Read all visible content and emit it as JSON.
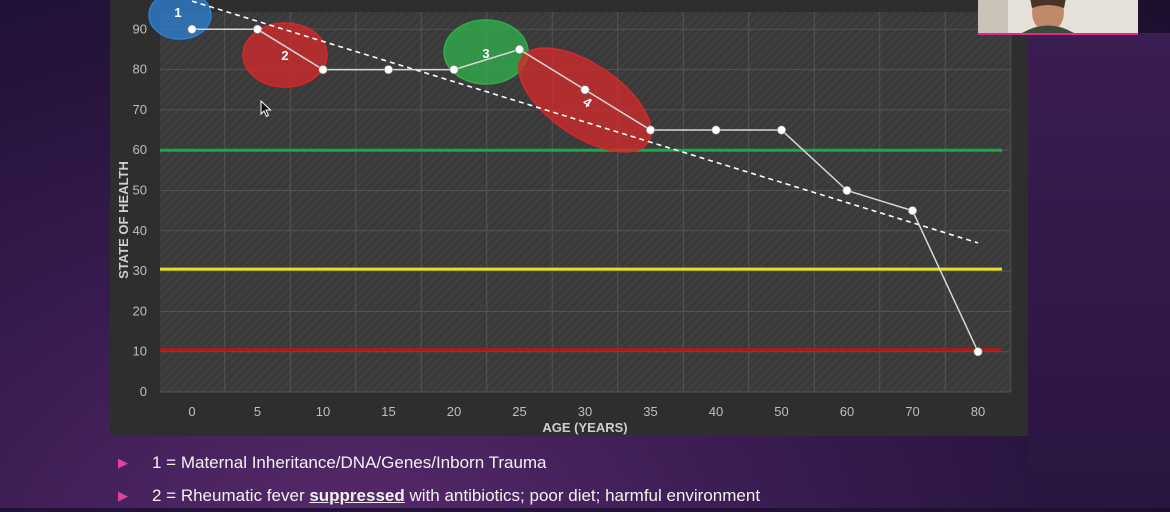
{
  "chart_data": {
    "type": "line",
    "ylabel": "STATE OF HEALTH",
    "xlabel": "AGE (YEARS)",
    "categories": [
      "0",
      "5",
      "10",
      "15",
      "20",
      "25",
      "30",
      "35",
      "40",
      "50",
      "60",
      "70",
      "80"
    ],
    "yticks": [
      "90",
      "80",
      "70",
      "60",
      "50",
      "40",
      "30",
      "20",
      "10",
      "0"
    ],
    "ylim": [
      0,
      100
    ],
    "grid": true,
    "series": [
      {
        "values": [
          90,
          90,
          80,
          80,
          80,
          85,
          75,
          65,
          65,
          65,
          50,
          45,
          10
        ]
      }
    ],
    "trendline": {
      "style": "dashed",
      "from": [
        "0",
        97
      ],
      "to": [
        "80",
        37
      ]
    },
    "reference_lines": [
      {
        "value": 60,
        "color": "#1aa84a"
      },
      {
        "value": 30.5,
        "color": "#e3e02a"
      },
      {
        "value": 10.5,
        "color": "#b01818"
      }
    ],
    "annotations": [
      {
        "label": "1",
        "color": "#2e7fd0"
      },
      {
        "label": "2",
        "color": "#d12a2a"
      },
      {
        "label": "3",
        "color": "#2fae4a"
      },
      {
        "label": "4",
        "color": "#d12a2a"
      }
    ]
  },
  "bullets": [
    {
      "marker": "▶",
      "text_before": "1 = Maternal Inheritance/DNA/Genes/Inborn Trauma",
      "emph": "",
      "text_after": ""
    },
    {
      "marker": "▶",
      "text_before": "2 = Rheumatic fever ",
      "emph": "suppressed",
      "text_after": " with antibiotics; poor diet; harmful environment"
    }
  ],
  "colors": {
    "panel": "#2e2e2e",
    "accent": "#e0449a"
  },
  "icons": {
    "cursor": "cursor-arrow-icon",
    "webcam": "webcam-presenter"
  }
}
